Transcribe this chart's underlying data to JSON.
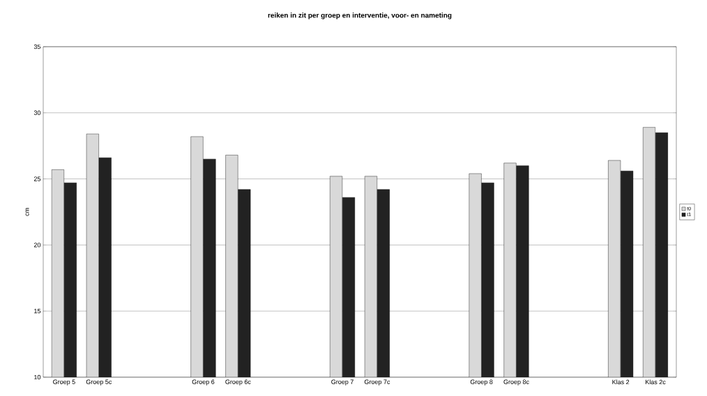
{
  "chart_data": {
    "type": "bar",
    "title": "reiken in zit per groep en interventie, voor- en nameting",
    "ylabel": "cm",
    "categories": [
      "Groep 5",
      "Groep 5c",
      null,
      null,
      "Groep 6",
      "Groep 6c",
      null,
      null,
      "Groep 7",
      "Groep 7c",
      null,
      null,
      "Groep 8",
      "Groep 8c",
      null,
      null,
      "Klas 2",
      "Klas 2c"
    ],
    "series": [
      {
        "name": "t0",
        "color": "#d9d9d9",
        "values": [
          25.7,
          28.4,
          null,
          null,
          28.2,
          26.8,
          null,
          null,
          25.2,
          25.2,
          null,
          null,
          25.4,
          26.2,
          null,
          null,
          26.4,
          28.9
        ]
      },
      {
        "name": "t1",
        "color": "#222222",
        "values": [
          24.7,
          26.6,
          null,
          null,
          26.5,
          24.2,
          null,
          null,
          23.6,
          24.2,
          null,
          null,
          24.7,
          26.0,
          null,
          null,
          25.6,
          28.5
        ]
      }
    ],
    "ylim": [
      10,
      35
    ],
    "yticks": [
      10,
      15,
      20,
      25,
      30,
      35
    ],
    "grid": "y",
    "legend": "right"
  }
}
